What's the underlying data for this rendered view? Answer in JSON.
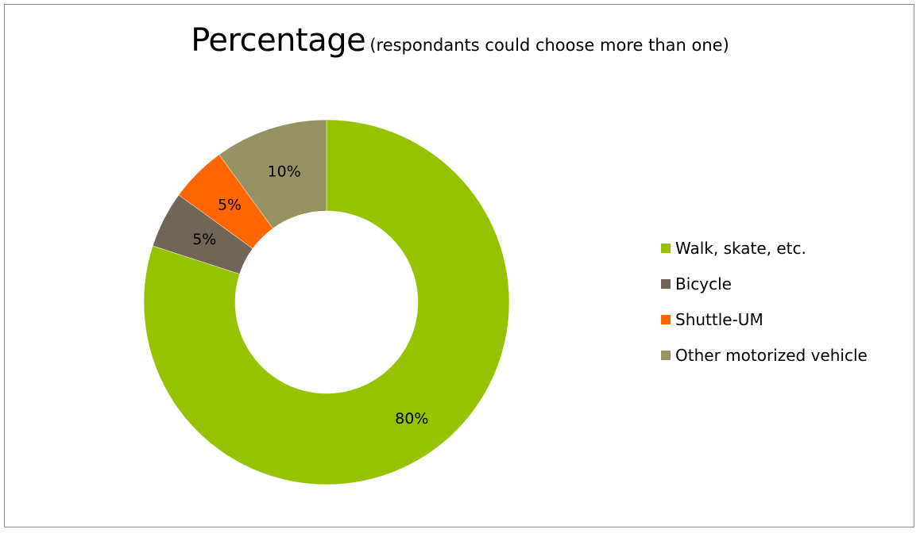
{
  "chart_data": {
    "type": "pie",
    "title": "Percentage",
    "subtitle": "(respondants could choose more than one)",
    "labels": [
      "Walk, skate, etc.",
      "Bicycle",
      "Shuttle-UM",
      "Other motorized vehicle"
    ],
    "values": [
      80,
      5,
      5,
      10
    ],
    "data_labels": [
      "80%",
      "5%",
      "5%",
      "10%"
    ],
    "colors": [
      "#96c300",
      "#706556",
      "#ff6600",
      "#969264"
    ],
    "legend_position": "right"
  }
}
